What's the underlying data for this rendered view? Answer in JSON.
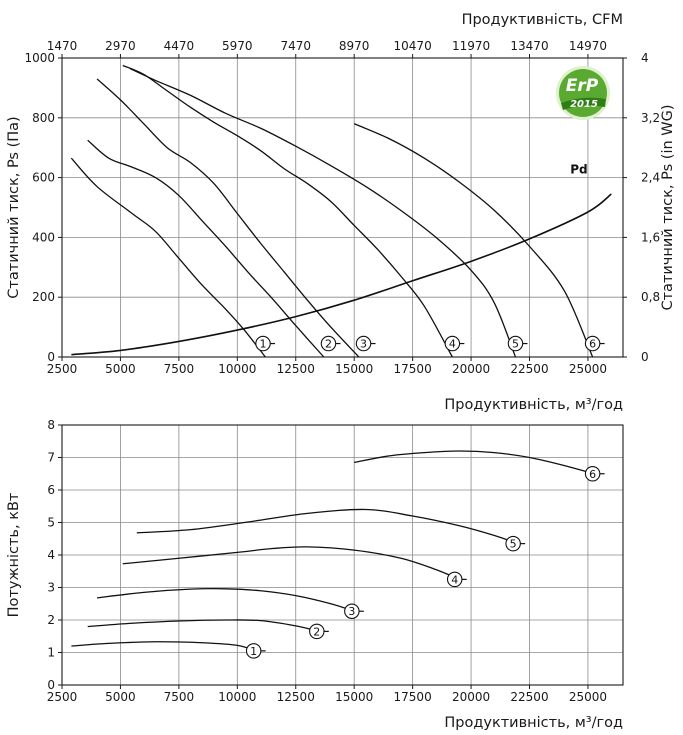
{
  "chart_data": [
    {
      "type": "line",
      "xlabel": "Продуктивність, м³/год",
      "x2label": "Продуктивність, CFM",
      "ylabel": "Статичний тиск, Ps (Па)",
      "y2label": "Статичний тиск, Ps (in WG)",
      "xlim": [
        2500,
        26500
      ],
      "ylim": [
        0,
        1000
      ],
      "x_ticks": [
        2500,
        5000,
        7500,
        10000,
        12500,
        15000,
        17500,
        20000,
        22500,
        25000
      ],
      "y_ticks": [
        0,
        200,
        400,
        600,
        800,
        1000
      ],
      "x2_ticks": [
        "1470",
        "2970",
        "4470",
        "5970",
        "7470",
        "8970",
        "10470",
        "11970",
        "13470",
        "14970"
      ],
      "y2_ticks": [
        "0",
        "0,8",
        "1,6",
        "2,4",
        "3,2",
        "4"
      ],
      "grid": true,
      "logo_text": "ErP",
      "logo_year": "2015",
      "series": [
        {
          "name": "1",
          "x": [
            2900,
            4000,
            5500,
            6500,
            7500,
            8500,
            9500,
            10300,
            11200
          ],
          "y": [
            665,
            570,
            480,
            420,
            330,
            240,
            160,
            90,
            0
          ]
        },
        {
          "name": "2",
          "x": [
            3600,
            4500,
            5500,
            6500,
            7500,
            8500,
            9500,
            10500,
            11500,
            12500,
            13700
          ],
          "y": [
            725,
            665,
            635,
            600,
            540,
            455,
            370,
            280,
            195,
            105,
            0
          ]
        },
        {
          "name": "3",
          "x": [
            4000,
            5000,
            6000,
            7000,
            8000,
            9000,
            10000,
            11000,
            12000,
            13000,
            14000,
            15200
          ],
          "y": [
            930,
            860,
            780,
            700,
            650,
            580,
            480,
            380,
            285,
            190,
            100,
            0
          ]
        },
        {
          "name": "4",
          "x": [
            5100,
            6000,
            7000,
            8000,
            9000,
            10000,
            11000,
            12000,
            13000,
            14000,
            15000,
            16000,
            17000,
            18000,
            19200
          ],
          "y": [
            975,
            945,
            890,
            835,
            785,
            740,
            690,
            630,
            580,
            520,
            440,
            360,
            270,
            170,
            0
          ]
        },
        {
          "name": "5",
          "x": [
            5400,
            6500,
            8000,
            9500,
            11000,
            12500,
            14000,
            15500,
            17000,
            18500,
            20000,
            21000,
            21900
          ],
          "y": [
            965,
            925,
            875,
            815,
            765,
            705,
            640,
            570,
            490,
            400,
            290,
            180,
            0
          ]
        },
        {
          "name": "6",
          "x": [
            15000,
            16500,
            18000,
            19500,
            21000,
            22500,
            24000,
            25200
          ],
          "y": [
            780,
            730,
            665,
            585,
            490,
            370,
            220,
            0
          ]
        },
        {
          "name": "Pd",
          "x": [
            2900,
            5000,
            7500,
            10000,
            12500,
            15000,
            17500,
            20000,
            22500,
            25000,
            26000
          ],
          "y": [
            8,
            22,
            52,
            90,
            135,
            190,
            255,
            320,
            395,
            485,
            545
          ]
        }
      ],
      "markers": [
        {
          "label": "1",
          "x": 11100,
          "y": 45
        },
        {
          "label": "2",
          "x": 13900,
          "y": 45
        },
        {
          "label": "3",
          "x": 15400,
          "y": 45
        },
        {
          "label": "4",
          "x": 19200,
          "y": 45
        },
        {
          "label": "5",
          "x": 21900,
          "y": 45
        },
        {
          "label": "6",
          "x": 25200,
          "y": 45
        }
      ],
      "pd_label": "Pd"
    },
    {
      "type": "line",
      "xlabel": "Продуктивність, м³/год",
      "ylabel": "Потужність, кВт",
      "xlim": [
        2500,
        26500
      ],
      "ylim": [
        0,
        8
      ],
      "x_ticks": [
        2500,
        5000,
        7500,
        10000,
        12500,
        15000,
        17500,
        20000,
        22500,
        25000
      ],
      "y_ticks": [
        0,
        1,
        2,
        3,
        4,
        5,
        6,
        7,
        8
      ],
      "grid": true,
      "series": [
        {
          "name": "1",
          "x": [
            2900,
            4500,
            6500,
            8500,
            10000,
            10800
          ],
          "y": [
            1.2,
            1.28,
            1.33,
            1.3,
            1.22,
            1.05
          ]
        },
        {
          "name": "2",
          "x": [
            3600,
            5500,
            7500,
            9500,
            11000,
            12500,
            13500
          ],
          "y": [
            1.8,
            1.9,
            1.97,
            2.0,
            1.98,
            1.82,
            1.65
          ]
        },
        {
          "name": "3",
          "x": [
            4000,
            6000,
            8000,
            9500,
            11000,
            12500,
            14000,
            15000
          ],
          "y": [
            2.68,
            2.85,
            2.95,
            2.96,
            2.9,
            2.75,
            2.5,
            2.27
          ]
        },
        {
          "name": "4",
          "x": [
            5100,
            7500,
            10000,
            11500,
            13000,
            15000,
            17000,
            18500,
            19500
          ],
          "y": [
            3.73,
            3.9,
            4.08,
            4.2,
            4.25,
            4.15,
            3.9,
            3.55,
            3.25
          ]
        },
        {
          "name": "5",
          "x": [
            5700,
            8000,
            10500,
            13000,
            15500,
            17500,
            19500,
            21000,
            22000
          ],
          "y": [
            4.68,
            4.78,
            5.02,
            5.28,
            5.4,
            5.2,
            4.9,
            4.6,
            4.35
          ]
        },
        {
          "name": "6",
          "x": [
            15000,
            16500,
            18000,
            19500,
            21000,
            22500,
            24000,
            25500
          ],
          "y": [
            6.85,
            7.05,
            7.15,
            7.2,
            7.15,
            7.0,
            6.75,
            6.45
          ]
        }
      ],
      "markers": [
        {
          "label": "1",
          "x": 10700,
          "y": 1.05
        },
        {
          "label": "2",
          "x": 13400,
          "y": 1.65
        },
        {
          "label": "3",
          "x": 14900,
          "y": 2.27
        },
        {
          "label": "4",
          "x": 19300,
          "y": 3.25
        },
        {
          "label": "5",
          "x": 21800,
          "y": 4.35
        },
        {
          "label": "6",
          "x": 25200,
          "y": 6.5
        }
      ]
    }
  ]
}
